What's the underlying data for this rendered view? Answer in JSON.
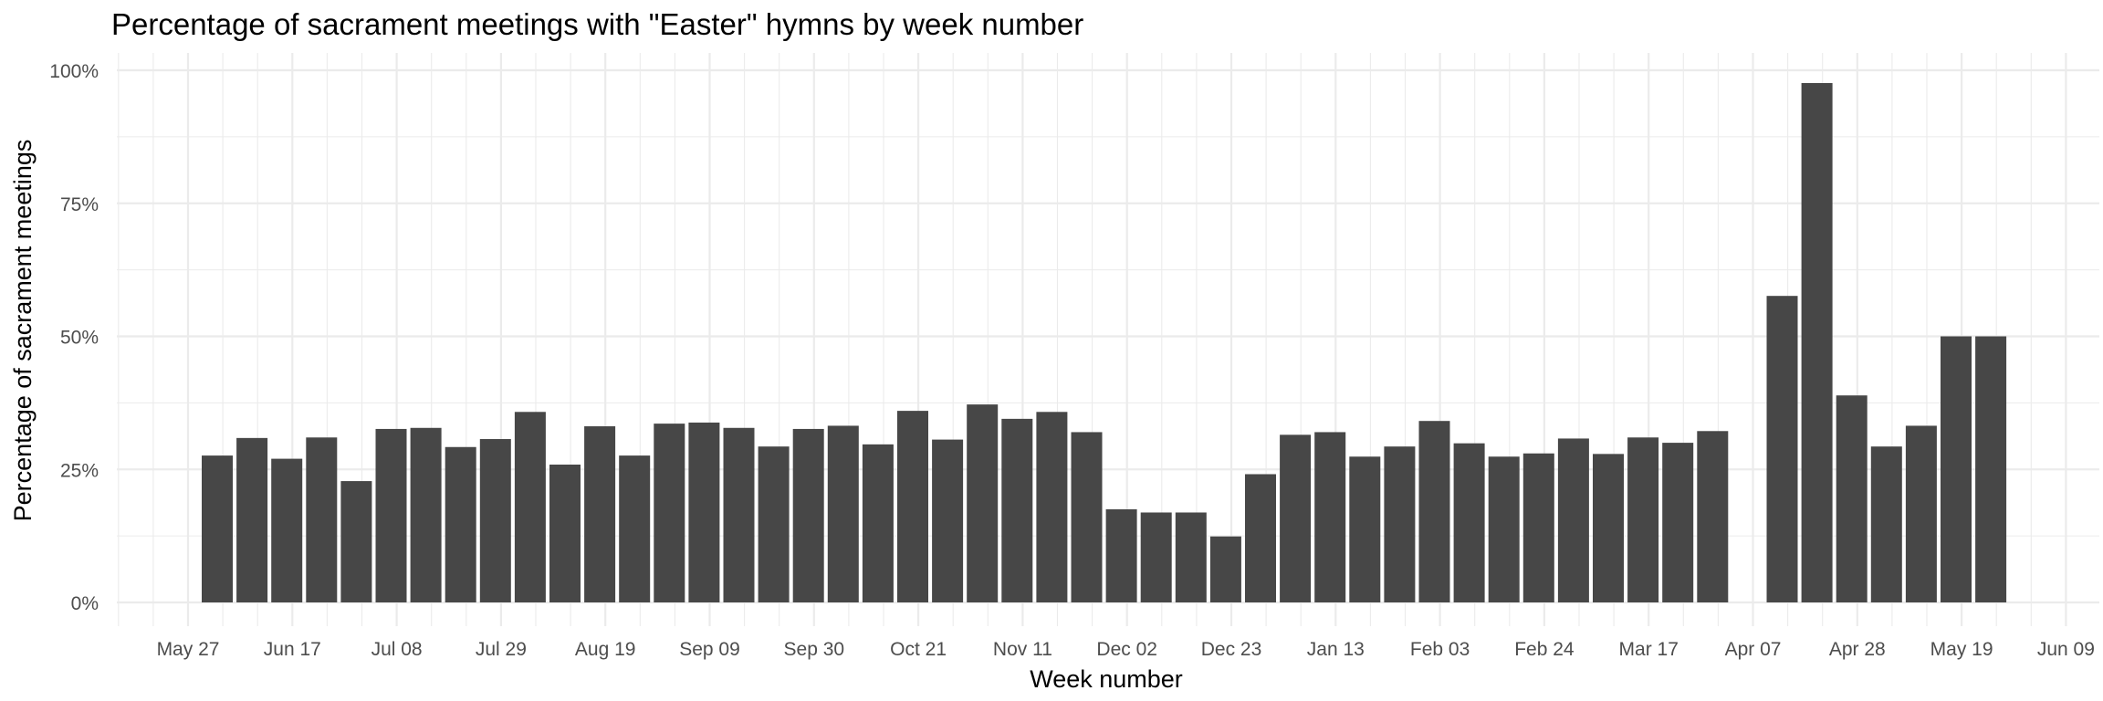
{
  "chart_data": {
    "type": "bar",
    "title": "Percentage of sacrament meetings with \"Easter\" hymns by week number",
    "xlabel": "Week number",
    "ylabel": "Percentage of sacrament meetings",
    "ylim": [
      0,
      1
    ],
    "y_ticks": [
      "0%",
      "25%",
      "50%",
      "75%",
      "100%"
    ],
    "x_ticks": [
      "May 27",
      "Jun 17",
      "Jul 08",
      "Jul 29",
      "Aug 19",
      "Sep 09",
      "Sep 30",
      "Oct 21",
      "Nov 11",
      "Dec 02",
      "Dec 23",
      "Jan 13",
      "Feb 03",
      "Feb 24",
      "Mar 17",
      "Apr 07",
      "Apr 28",
      "May 19",
      "Jun 09"
    ],
    "grid": true,
    "bar_color": "#474747",
    "grid_color": "#ebebeb",
    "categories": [
      "May 31",
      "Jun 07",
      "Jun 14",
      "Jun 21",
      "Jun 28",
      "Jul 05",
      "Jul 12",
      "Jul 19",
      "Jul 26",
      "Aug 02",
      "Aug 09",
      "Aug 16",
      "Aug 23",
      "Aug 30",
      "Sep 06",
      "Sep 13",
      "Sep 20",
      "Sep 27",
      "Oct 04",
      "Oct 11",
      "Oct 18",
      "Oct 25",
      "Nov 01",
      "Nov 08",
      "Nov 15",
      "Nov 22",
      "Nov 29",
      "Dec 06",
      "Dec 13",
      "Dec 20",
      "Dec 27",
      "Jan 03",
      "Jan 10",
      "Jan 17",
      "Jan 24",
      "Jan 31",
      "Feb 07",
      "Feb 14",
      "Feb 21",
      "Feb 28",
      "Mar 07",
      "Mar 14",
      "Mar 21",
      "Mar 28",
      "Apr 04",
      "Apr 11",
      "Apr 18",
      "Apr 25",
      "May 02",
      "May 09",
      "May 16",
      "May 23"
    ],
    "values": [
      0.276,
      0.309,
      0.27,
      0.31,
      0.228,
      0.326,
      0.328,
      0.292,
      0.307,
      0.358,
      0.259,
      0.331,
      0.276,
      0.336,
      0.338,
      0.328,
      0.293,
      0.326,
      0.332,
      0.297,
      0.36,
      0.306,
      0.372,
      0.345,
      0.358,
      0.32,
      0.175,
      0.169,
      0.169,
      0.124,
      0.241,
      0.315,
      0.32,
      0.274,
      0.293,
      0.341,
      0.299,
      0.274,
      0.28,
      0.308,
      0.279,
      0.31,
      0.3,
      0.322,
      null,
      0.576,
      0.976,
      0.389,
      0.293,
      0.332,
      0.5,
      0.5
    ]
  }
}
